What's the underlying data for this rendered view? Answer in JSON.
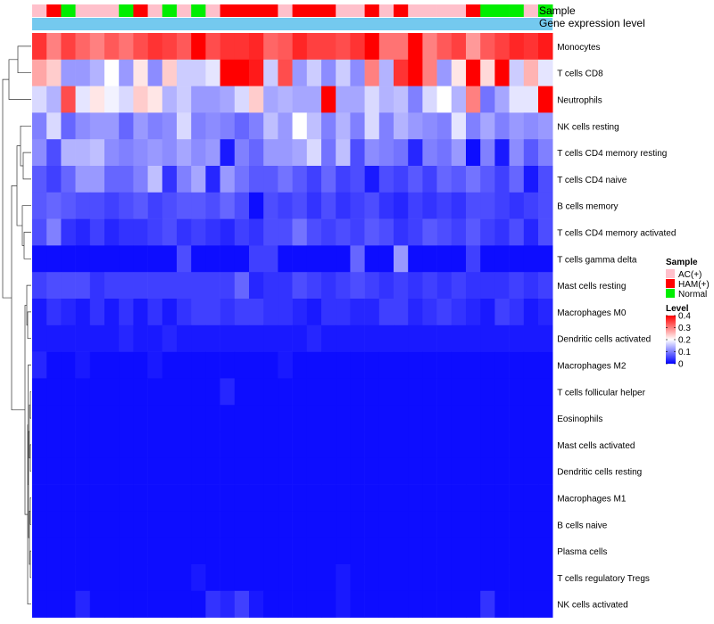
{
  "chart_data": {
    "type": "heatmap",
    "title": "",
    "annotations": {
      "sample_track_label": "Sample",
      "expression_track_label": "Gene expression level",
      "expression_track_color": "#74c9ef"
    },
    "sample_groups": [
      {
        "name": "AC(+)",
        "color": "#ffc0cb"
      },
      {
        "name": "HAM(+)",
        "color": "#ff0000"
      },
      {
        "name": "Normal",
        "color": "#00ee00"
      }
    ],
    "samples": [
      "AC(+)",
      "HAM(+)",
      "Normal",
      "AC(+)",
      "AC(+)",
      "AC(+)",
      "Normal",
      "HAM(+)",
      "AC(+)",
      "Normal",
      "AC(+)",
      "Normal",
      "AC(+)",
      "HAM(+)",
      "HAM(+)",
      "HAM(+)",
      "HAM(+)",
      "AC(+)",
      "HAM(+)",
      "HAM(+)",
      "HAM(+)",
      "AC(+)",
      "AC(+)",
      "HAM(+)",
      "AC(+)",
      "HAM(+)",
      "AC(+)",
      "AC(+)",
      "AC(+)",
      "AC(+)",
      "HAM(+)",
      "Normal",
      "Normal",
      "Normal",
      "AC(+)",
      "Normal"
    ],
    "row_labels": [
      "Monocytes",
      "T cells CD8",
      "Neutrophils",
      "NK cells resting",
      "T cells CD4 memory resting",
      "T cells CD4 naive",
      "B cells memory",
      "T cells CD4 memory activated",
      "T cells gamma delta",
      "Mast cells resting",
      "Macrophages M0",
      "Dendritic cells activated",
      "Macrophages M2",
      "T cells follicular helper",
      "Eosinophils",
      "Mast cells activated",
      "Dendritic cells resting",
      "Macrophages M1",
      "B cells naive",
      "Plasma cells",
      "T cells regulatory  Tregs",
      "NK cells activated"
    ],
    "values": [
      [
        0.36,
        0.3,
        0.35,
        0.32,
        0.3,
        0.33,
        0.31,
        0.34,
        0.36,
        0.35,
        0.33,
        0.4,
        0.34,
        0.36,
        0.36,
        0.37,
        0.32,
        0.33,
        0.37,
        0.35,
        0.35,
        0.34,
        0.36,
        0.4,
        0.31,
        0.31,
        0.4,
        0.3,
        0.33,
        0.35,
        0.28,
        0.33,
        0.35,
        0.37,
        0.36,
        0.38
      ],
      [
        0.27,
        0.24,
        0.12,
        0.12,
        0.14,
        0.2,
        0.12,
        0.22,
        0.11,
        0.24,
        0.16,
        0.16,
        0.18,
        0.4,
        0.4,
        0.38,
        0.16,
        0.34,
        0.12,
        0.16,
        0.11,
        0.16,
        0.11,
        0.3,
        0.14,
        0.36,
        0.4,
        0.3,
        0.12,
        0.22,
        0.4,
        0.23,
        0.4,
        0.16,
        0.26,
        0.18
      ],
      [
        0.17,
        0.14,
        0.34,
        0.18,
        0.22,
        0.19,
        0.17,
        0.24,
        0.22,
        0.14,
        0.16,
        0.12,
        0.12,
        0.13,
        0.17,
        0.24,
        0.13,
        0.14,
        0.13,
        0.13,
        0.4,
        0.13,
        0.13,
        0.17,
        0.14,
        0.15,
        0.1,
        0.17,
        0.2,
        0.14,
        0.3,
        0.09,
        0.13,
        0.18,
        0.18,
        0.4
      ],
      [
        0.1,
        0.17,
        0.08,
        0.11,
        0.12,
        0.12,
        0.08,
        0.12,
        0.1,
        0.11,
        0.17,
        0.1,
        0.11,
        0.1,
        0.08,
        0.1,
        0.15,
        0.12,
        0.2,
        0.15,
        0.1,
        0.14,
        0.1,
        0.17,
        0.1,
        0.14,
        0.12,
        0.11,
        0.1,
        0.18,
        0.1,
        0.13,
        0.1,
        0.12,
        0.11,
        0.12
      ],
      [
        0.11,
        0.06,
        0.14,
        0.14,
        0.15,
        0.11,
        0.1,
        0.11,
        0.12,
        0.11,
        0.13,
        0.11,
        0.12,
        0.02,
        0.1,
        0.08,
        0.12,
        0.12,
        0.13,
        0.17,
        0.09,
        0.15,
        0.06,
        0.11,
        0.1,
        0.09,
        0.03,
        0.1,
        0.09,
        0.12,
        0.01,
        0.1,
        0.02,
        0.11,
        0.07,
        0.1
      ],
      [
        0.07,
        0.05,
        0.08,
        0.12,
        0.12,
        0.08,
        0.08,
        0.1,
        0.15,
        0.04,
        0.1,
        0.13,
        0.03,
        0.12,
        0.09,
        0.07,
        0.07,
        0.09,
        0.07,
        0.05,
        0.08,
        0.05,
        0.06,
        0.02,
        0.06,
        0.05,
        0.07,
        0.05,
        0.08,
        0.07,
        0.09,
        0.07,
        0.05,
        0.08,
        0.02,
        0.06
      ],
      [
        0.07,
        0.08,
        0.07,
        0.06,
        0.06,
        0.05,
        0.06,
        0.07,
        0.05,
        0.06,
        0.07,
        0.07,
        0.06,
        0.08,
        0.06,
        0.01,
        0.06,
        0.05,
        0.06,
        0.04,
        0.06,
        0.04,
        0.05,
        0.06,
        0.04,
        0.03,
        0.05,
        0.04,
        0.05,
        0.04,
        0.06,
        0.06,
        0.05,
        0.04,
        0.05,
        0.06
      ],
      [
        0.06,
        0.1,
        0.04,
        0.03,
        0.05,
        0.03,
        0.04,
        0.04,
        0.05,
        0.06,
        0.04,
        0.05,
        0.04,
        0.03,
        0.05,
        0.04,
        0.06,
        0.06,
        0.09,
        0.06,
        0.05,
        0.06,
        0.05,
        0.07,
        0.06,
        0.04,
        0.05,
        0.07,
        0.06,
        0.05,
        0.07,
        0.05,
        0.04,
        0.06,
        0.03,
        0.06
      ],
      [
        0.01,
        0.01,
        0.01,
        0.01,
        0.01,
        0.01,
        0.01,
        0.01,
        0.01,
        0.01,
        0.06,
        0.01,
        0.01,
        0.01,
        0.01,
        0.05,
        0.05,
        0.01,
        0.01,
        0.01,
        0.01,
        0.01,
        0.08,
        0.01,
        0.01,
        0.12,
        0.01,
        0.01,
        0.01,
        0.01,
        0.05,
        0.01,
        0.01,
        0.01,
        0.01,
        0.01
      ],
      [
        0.05,
        0.06,
        0.06,
        0.06,
        0.04,
        0.05,
        0.05,
        0.05,
        0.05,
        0.05,
        0.05,
        0.05,
        0.05,
        0.05,
        0.08,
        0.03,
        0.04,
        0.04,
        0.06,
        0.05,
        0.04,
        0.05,
        0.06,
        0.05,
        0.04,
        0.05,
        0.04,
        0.05,
        0.04,
        0.05,
        0.04,
        0.04,
        0.04,
        0.05,
        0.04,
        0.05
      ],
      [
        0.02,
        0.04,
        0.03,
        0.02,
        0.04,
        0.02,
        0.04,
        0.02,
        0.04,
        0.02,
        0.04,
        0.05,
        0.05,
        0.04,
        0.05,
        0.05,
        0.04,
        0.04,
        0.03,
        0.02,
        0.04,
        0.04,
        0.03,
        0.03,
        0.05,
        0.05,
        0.03,
        0.04,
        0.05,
        0.04,
        0.03,
        0.02,
        0.05,
        0.04,
        0.02,
        0.03
      ],
      [
        0.02,
        0.02,
        0.02,
        0.02,
        0.02,
        0.02,
        0.03,
        0.02,
        0.02,
        0.03,
        0.02,
        0.02,
        0.02,
        0.02,
        0.02,
        0.02,
        0.02,
        0.02,
        0.02,
        0.03,
        0.02,
        0.02,
        0.02,
        0.02,
        0.02,
        0.02,
        0.02,
        0.02,
        0.02,
        0.02,
        0.02,
        0.02,
        0.02,
        0.02,
        0.02,
        0.02
      ],
      [
        0.03,
        0.01,
        0.01,
        0.02,
        0.01,
        0.01,
        0.01,
        0.01,
        0.02,
        0.01,
        0.01,
        0.01,
        0.01,
        0.01,
        0.01,
        0.01,
        0.01,
        0.02,
        0.01,
        0.01,
        0.01,
        0.01,
        0.01,
        0.01,
        0.01,
        0.01,
        0.01,
        0.01,
        0.01,
        0.01,
        0.01,
        0.01,
        0.01,
        0.01,
        0.01,
        0.01
      ],
      [
        0.01,
        0.01,
        0.01,
        0.01,
        0.01,
        0.01,
        0.01,
        0.01,
        0.01,
        0.01,
        0.01,
        0.01,
        0.01,
        0.03,
        0.01,
        0.01,
        0.01,
        0.01,
        0.01,
        0.01,
        0.01,
        0.01,
        0.01,
        0.01,
        0.01,
        0.01,
        0.01,
        0.01,
        0.01,
        0.01,
        0.01,
        0.01,
        0.01,
        0.01,
        0.01,
        0.01
      ],
      [
        0.01,
        0.01,
        0.01,
        0.01,
        0.01,
        0.01,
        0.01,
        0.01,
        0.01,
        0.01,
        0.01,
        0.01,
        0.01,
        0.01,
        0.01,
        0.01,
        0.01,
        0.01,
        0.01,
        0.01,
        0.01,
        0.01,
        0.01,
        0.01,
        0.01,
        0.01,
        0.01,
        0.01,
        0.01,
        0.01,
        0.01,
        0.01,
        0.01,
        0.01,
        0.01,
        0.01
      ],
      [
        0.01,
        0.01,
        0.01,
        0.01,
        0.01,
        0.01,
        0.01,
        0.01,
        0.01,
        0.01,
        0.01,
        0.01,
        0.01,
        0.01,
        0.01,
        0.01,
        0.01,
        0.01,
        0.01,
        0.01,
        0.01,
        0.01,
        0.01,
        0.01,
        0.01,
        0.01,
        0.01,
        0.01,
        0.01,
        0.01,
        0.01,
        0.01,
        0.01,
        0.01,
        0.01,
        0.01
      ],
      [
        0.01,
        0.01,
        0.01,
        0.01,
        0.01,
        0.01,
        0.01,
        0.01,
        0.01,
        0.01,
        0.01,
        0.01,
        0.01,
        0.01,
        0.01,
        0.01,
        0.01,
        0.01,
        0.01,
        0.01,
        0.01,
        0.01,
        0.01,
        0.01,
        0.01,
        0.01,
        0.01,
        0.01,
        0.01,
        0.01,
        0.01,
        0.01,
        0.01,
        0.01,
        0.01,
        0.01
      ],
      [
        0.01,
        0.01,
        0.01,
        0.01,
        0.01,
        0.01,
        0.01,
        0.01,
        0.01,
        0.01,
        0.01,
        0.01,
        0.01,
        0.01,
        0.01,
        0.01,
        0.01,
        0.01,
        0.01,
        0.01,
        0.01,
        0.01,
        0.01,
        0.01,
        0.01,
        0.01,
        0.01,
        0.01,
        0.01,
        0.01,
        0.01,
        0.01,
        0.01,
        0.01,
        0.01,
        0.01
      ],
      [
        0.01,
        0.01,
        0.01,
        0.01,
        0.01,
        0.01,
        0.01,
        0.01,
        0.01,
        0.01,
        0.01,
        0.01,
        0.01,
        0.01,
        0.01,
        0.01,
        0.01,
        0.01,
        0.01,
        0.01,
        0.01,
        0.01,
        0.01,
        0.01,
        0.01,
        0.01,
        0.01,
        0.01,
        0.01,
        0.01,
        0.01,
        0.01,
        0.01,
        0.01,
        0.01,
        0.01
      ],
      [
        0.01,
        0.01,
        0.01,
        0.01,
        0.01,
        0.01,
        0.01,
        0.01,
        0.01,
        0.01,
        0.01,
        0.01,
        0.01,
        0.01,
        0.01,
        0.01,
        0.01,
        0.01,
        0.01,
        0.01,
        0.01,
        0.01,
        0.01,
        0.01,
        0.01,
        0.01,
        0.01,
        0.01,
        0.01,
        0.01,
        0.01,
        0.01,
        0.01,
        0.01,
        0.01,
        0.01
      ],
      [
        0.01,
        0.01,
        0.01,
        0.01,
        0.01,
        0.01,
        0.01,
        0.01,
        0.01,
        0.01,
        0.01,
        0.02,
        0.01,
        0.01,
        0.01,
        0.01,
        0.01,
        0.01,
        0.01,
        0.01,
        0.01,
        0.02,
        0.01,
        0.01,
        0.01,
        0.01,
        0.01,
        0.01,
        0.01,
        0.01,
        0.01,
        0.01,
        0.01,
        0.01,
        0.01,
        0.01
      ],
      [
        0.01,
        0.01,
        0.01,
        0.03,
        0.01,
        0.01,
        0.01,
        0.01,
        0.01,
        0.01,
        0.01,
        0.01,
        0.04,
        0.03,
        0.05,
        0.02,
        0.01,
        0.01,
        0.01,
        0.01,
        0.01,
        0.02,
        0.01,
        0.01,
        0.01,
        0.01,
        0.01,
        0.01,
        0.01,
        0.01,
        0.01,
        0.04,
        0.01,
        0.01,
        0.01,
        0.01
      ]
    ],
    "color_scale": {
      "title": "Level",
      "ticks": [
        0.4,
        0.3,
        0.2,
        0.1,
        0
      ],
      "tick_labels": [
        "0.4",
        "0.3",
        "0.2",
        "0.1",
        "0"
      ],
      "min": 0,
      "max": 0.4,
      "low_color": "#0000ff",
      "mid_color": "#ffffff",
      "high_color": "#ff0000",
      "mid_value": 0.2
    },
    "legend_title": "Sample",
    "legend_position": "right",
    "row_dendrogram": "left"
  }
}
